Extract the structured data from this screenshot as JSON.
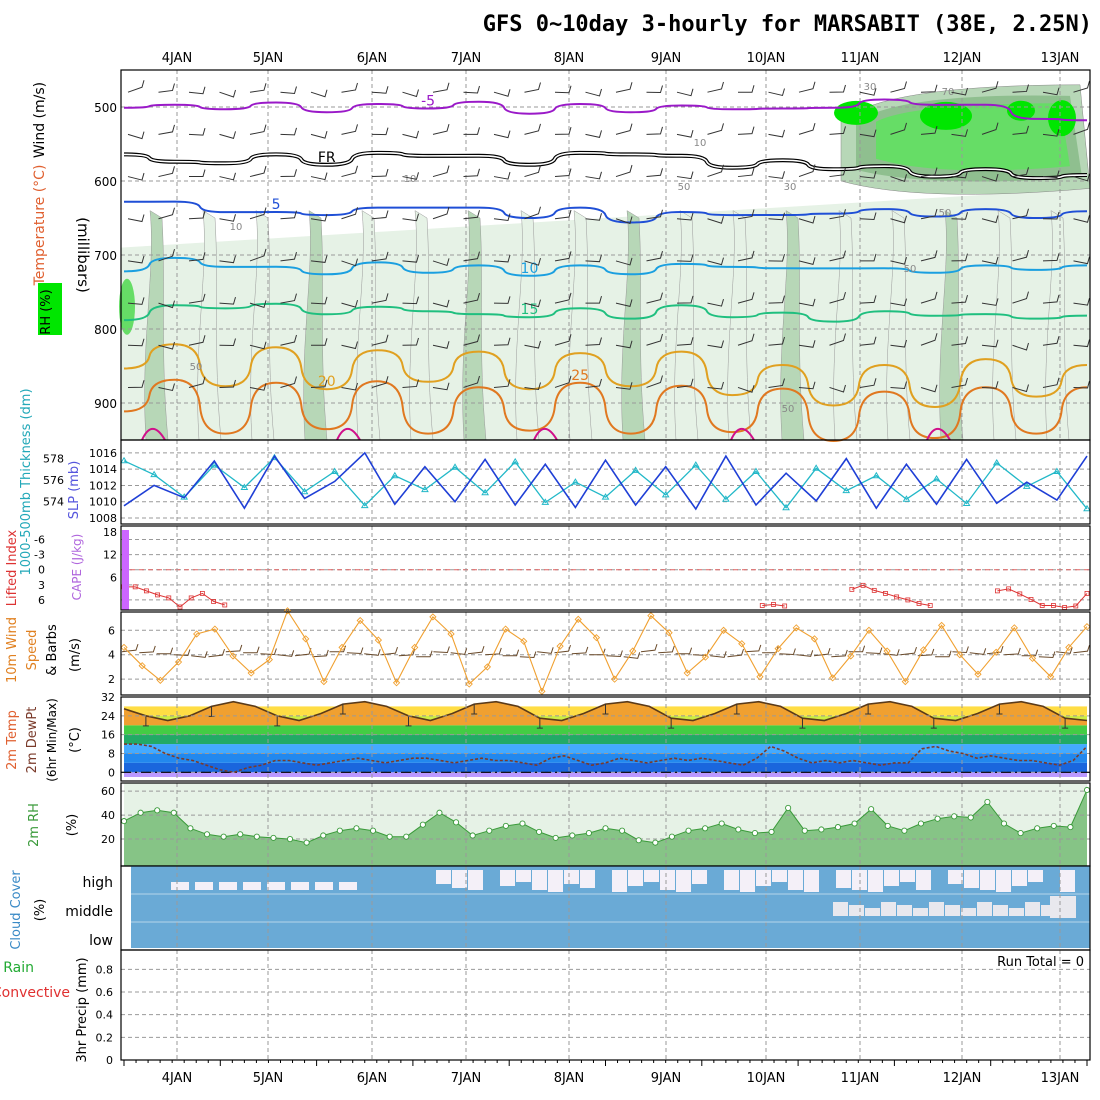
{
  "chart_data": {
    "type": "meteogram",
    "title": "GFS 0~10day 3-hourly for MARSABIT (38E, 2.25N)",
    "x_day_labels": [
      "4JAN",
      "5JAN",
      "6JAN",
      "7JAN",
      "8JAN",
      "9JAN",
      "10JAN",
      "11JAN",
      "12JAN",
      "13JAN"
    ],
    "panels": {
      "upper_air": {
        "ylabel": "(millibars)",
        "legend_labels": {
          "wind": "Wind (m/s)",
          "temperature": "Temperature (°C)",
          "rh": "RH (%)"
        },
        "yticks": [
          500,
          600,
          700,
          800,
          900
        ],
        "ylim": [
          450,
          950
        ],
        "isotherms": [
          {
            "label": "-5",
            "color": "#9a19c8",
            "levels": [
              497,
              501,
              499,
              498,
              503,
              500,
              498,
              497,
              505,
              500,
              503,
              502,
              499,
              506,
              497,
              494,
              493,
              501,
              512,
              522
            ]
          },
          {
            "label": "FR",
            "color": "#000000",
            "levels": [
              560,
              578,
              572,
              568,
              574,
              566,
              562,
              570,
              574,
              566,
              560,
              570,
              578,
              576,
              580,
              584,
              590,
              588,
              592,
              596
            ]
          },
          {
            "label": "5",
            "color": "#1f4fd6",
            "levels": [
              624,
              632,
              638,
              646,
              642,
              640,
              632,
              640,
              646,
              640,
              652,
              646,
              642,
              650,
              640,
              642,
              644,
              642,
              646,
              645
            ]
          },
          {
            "label": "10",
            "color": "#1a9fe0",
            "levels": [
              718,
              708,
              712,
              720,
              722,
              714,
              720,
              718,
              724,
              718,
              722,
              716,
              712,
              722,
              714,
              722,
              720,
              718,
              716,
              718
            ]
          },
          {
            "label": "15",
            "color": "#1fbf7f",
            "levels": [
              784,
              772,
              768,
              770,
              776,
              774,
              772,
              784,
              780,
              776,
              782,
              772,
              780,
              782,
              786,
              780,
              778,
              784,
              782,
              786
            ]
          },
          {
            "label": "20",
            "color": "#e0a020",
            "levels": [
              842,
              832,
              866,
              836,
              870,
              840,
              860,
              842,
              870,
              844,
              866,
              842,
              878,
              860,
              892,
              860,
              894,
              852,
              880,
              860
            ]
          },
          {
            "label": "25",
            "color": "#e07820",
            "levels": [
              900,
              880,
              930,
              884,
              924,
              882,
              930,
              890,
              926,
              884,
              930,
              888,
              928,
              892,
              940,
              896,
              936,
              890,
              930,
              890
            ]
          }
        ],
        "rh_contour_labels": [
          "10",
          "10",
          "10",
          "30",
          "30",
          "50",
          "50",
          "50",
          "50",
          "50",
          "70"
        ]
      },
      "thickness_slp": {
        "ylabel_left": "1000-500mb Thickness (dm)",
        "ylabel_right": "SLP (mb)",
        "yticks_left": [
          574,
          576,
          578
        ],
        "yticks_right": [
          1008,
          1010,
          1012,
          1014,
          1016
        ],
        "slp_mb": [
          1009.5,
          1012,
          1010.5,
          1015,
          1009.2,
          1015.6,
          1010.4,
          1012.5,
          1016,
          1009.7,
          1014.3,
          1010,
          1015.2,
          1009.6,
          1014.6,
          1009.3,
          1015.1,
          1009.6,
          1014.3,
          1009.1,
          1015.6,
          1009.6,
          1013.5,
          1010.1,
          1015.3,
          1009.2,
          1014.6,
          1009.7,
          1015.2,
          1009.8,
          1012.4,
          1010.2,
          1015.6
        ],
        "thickness_dm": [
          577.8,
          576.5,
          574.4,
          577.4,
          575.3,
          578.1,
          574.9,
          576.8,
          573.6,
          576.4,
          575.1,
          577.2,
          574.8,
          577.7,
          573.9,
          575.8,
          574.4,
          576.9,
          574.6,
          577.4,
          574.2,
          576.8,
          573.4,
          577.1,
          575.0,
          576.4,
          574.2,
          576.1,
          573.8,
          577.6,
          575.4,
          576.8,
          573.3
        ]
      },
      "cape_li": {
        "ylabel_left": "Lifted Index",
        "ylabel_right": "CAPE (J/kg)",
        "yticks_left": [
          "-6",
          "-3",
          "0",
          "3",
          "6"
        ],
        "yticks_right": [
          6,
          12,
          18
        ],
        "lifted_index": [
          3.4,
          3.4,
          4.2,
          5,
          5.6,
          7.4,
          5.6,
          4.7,
          6.3,
          7,
          8,
          8,
          8,
          8,
          8,
          8,
          8,
          8,
          8,
          8,
          8,
          8,
          8,
          8,
          8,
          8,
          8,
          8,
          8,
          8,
          8,
          8,
          8,
          8,
          8,
          8,
          8,
          8,
          8,
          8,
          8,
          8,
          8,
          8,
          8,
          8,
          8,
          8,
          8,
          8,
          8,
          8,
          8,
          8,
          8,
          8,
          8,
          7.1,
          6.9,
          7.2,
          8,
          8,
          8,
          8,
          8,
          3.9,
          3.1,
          4.1,
          4.7,
          5.4,
          6.0,
          6.7,
          7.1,
          8,
          8,
          8,
          8,
          8,
          4.2,
          3.8,
          4.8,
          5.9,
          7.1,
          7.1,
          7.5,
          7.2,
          4.7
        ],
        "cape_jkg": [
          24,
          0,
          0,
          0,
          0,
          0,
          0,
          0,
          0,
          0,
          0,
          0,
          0,
          0,
          0,
          0,
          0,
          0,
          0,
          0,
          0,
          0,
          0,
          0,
          0,
          0,
          0,
          0,
          0,
          0,
          0,
          0,
          0,
          0,
          0,
          0,
          0,
          0,
          0,
          0,
          0,
          0,
          0,
          0,
          0,
          0,
          0,
          0,
          0,
          0,
          0,
          0,
          0,
          0,
          0,
          0,
          0,
          0,
          0,
          0,
          0,
          0,
          0,
          0,
          0,
          0,
          0,
          0,
          0,
          0,
          0,
          0,
          0,
          0,
          0,
          0,
          0,
          0,
          0,
          0,
          0,
          0,
          0,
          0,
          0,
          0,
          0
        ]
      },
      "wind10m": {
        "ylabel": "10m Wind Speed & Barbs (m/s)",
        "yticks": [
          2,
          4,
          6
        ],
        "ylim": [
          0.7,
          7.5
        ],
        "speed_ms": [
          4.6,
          3.1,
          1.9,
          3.4,
          5.7,
          6.1,
          3.9,
          2.5,
          3.6,
          7.6,
          5.3,
          1.8,
          4.6,
          6.8,
          5.2,
          1.7,
          4.6,
          7.1,
          5.7,
          1.6,
          3.0,
          6.1,
          5.1,
          1.0,
          4.7,
          6.9,
          5.4,
          2.0,
          4.3,
          7.2,
          5.8,
          2.5,
          3.8,
          6.0,
          4.9,
          2.2,
          4.5,
          6.2,
          5.3,
          2.1,
          3.9,
          6.0,
          4.3,
          1.8,
          4.4,
          6.4,
          4.0,
          2.4,
          4.2,
          6.2,
          3.7,
          2.2,
          4.6,
          6.3
        ]
      },
      "temp2m": {
        "ylabel": "2m Temp 2m DewPt (6hr Min/Max) (°C)",
        "yticks": [
          0,
          8,
          16,
          24,
          32
        ],
        "temp_c": [
          27,
          24,
          22,
          24,
          28,
          30,
          28,
          24,
          22,
          25,
          29,
          30,
          28,
          24,
          22,
          25,
          29,
          30,
          28,
          23,
          22,
          25,
          29,
          30,
          28,
          23,
          22,
          25,
          29,
          30,
          28,
          23,
          22,
          25,
          29,
          30,
          28,
          23,
          22,
          25,
          29,
          30,
          28,
          23,
          22
        ],
        "dewpt_c": [
          12,
          12,
          11,
          8,
          6,
          5,
          3,
          1,
          0,
          2,
          3,
          5,
          5,
          4,
          3,
          4,
          5,
          6,
          5,
          4,
          5,
          6,
          6,
          5,
          4,
          5,
          6,
          5,
          5,
          4,
          3,
          6,
          7,
          5,
          3,
          4,
          6,
          5,
          4,
          5,
          6,
          5,
          6,
          5,
          4,
          3,
          6,
          11,
          9,
          6,
          4,
          5,
          4,
          5,
          4,
          3,
          4,
          4,
          10,
          11,
          9,
          8,
          6,
          7,
          6,
          5,
          5,
          4,
          3,
          5,
          11
        ]
      },
      "rh2m": {
        "ylabel": "2m RH (%)",
        "yticks": [
          20,
          40,
          60
        ],
        "rh_pct": [
          35,
          42,
          44,
          42,
          29,
          24,
          22,
          24,
          22,
          21,
          20,
          17,
          23,
          27,
          29,
          27,
          22,
          22,
          32,
          42,
          34,
          23,
          27,
          31,
          33,
          26,
          21,
          23,
          25,
          29,
          27,
          19,
          17,
          22,
          27,
          29,
          33,
          28,
          25,
          26,
          46,
          27,
          28,
          30,
          33,
          45,
          31,
          27,
          33,
          37,
          39,
          38,
          51,
          33,
          25,
          29,
          31,
          30,
          61
        ]
      },
      "cloud": {
        "ylabel": "Cloud Cover (%)",
        "levels": [
          "high",
          "middle",
          "low"
        ]
      },
      "precip": {
        "ylabel": "3hr Precip (mm)",
        "legend": [
          "Total / Rain",
          "Convective"
        ],
        "yticks": [
          "0",
          "0.2",
          "0.4",
          "0.6",
          "0.8"
        ],
        "run_total_text": "Run Total = 0",
        "values": []
      }
    }
  },
  "colors": {
    "rh_light": "#e6f2e6",
    "rh_mid": "#b7d7b7",
    "rh_dark": "#8fbf8f",
    "rh_bright": "#66dd66",
    "rh_green": "#00e600",
    "cloud_blue": "#6aaad6",
    "slp_blue": "#1f3fd6",
    "thickness_cyan": "#22b8c8",
    "li_red": "#dd3333",
    "cape_purple": "#cc66ff",
    "wind_orange": "#f0a030",
    "rh2m_green": "#3a9a3a"
  }
}
